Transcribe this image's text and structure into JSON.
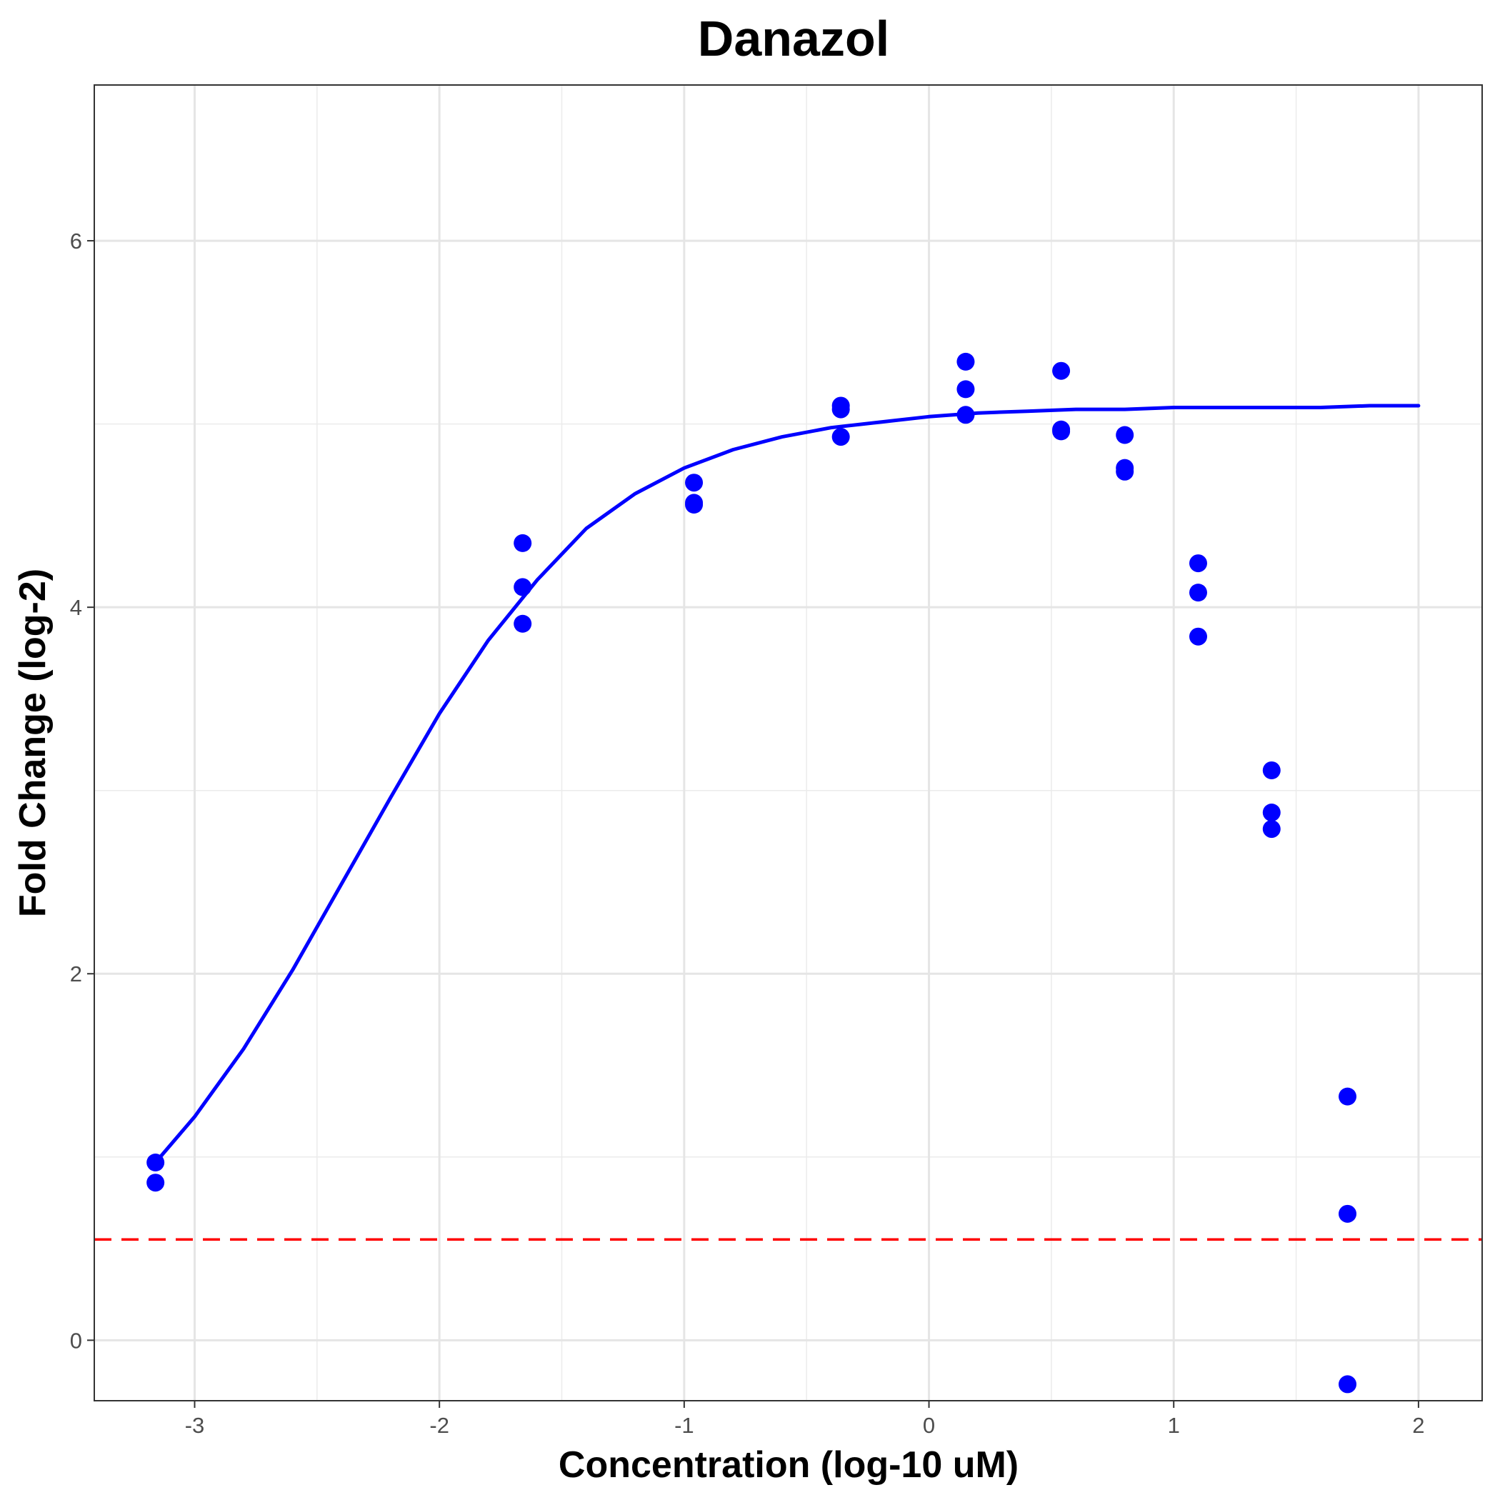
{
  "chart_data": {
    "type": "scatter",
    "title": "Danazol",
    "xlabel": "Concentration (log-10 uM)",
    "ylabel": "Fold Change (log-2)",
    "xlim": [
      -3.41,
      2.26
    ],
    "ylim": [
      -0.33,
      6.85
    ],
    "x_ticks": [
      -3,
      -2,
      -1,
      0,
      1,
      2
    ],
    "x_tick_labels": [
      "-3",
      "-2",
      "-1",
      "0",
      "1",
      "2"
    ],
    "y_ticks": [
      0,
      2,
      4,
      6
    ],
    "y_tick_labels": [
      "0",
      "2",
      "4",
      "6"
    ],
    "grid": true,
    "series": [
      {
        "kind": "points",
        "color": "#0000ff",
        "x": [
          -3.16,
          -3.16,
          -1.66,
          -1.66,
          -1.66,
          -0.96,
          -0.96,
          -0.96,
          -0.36,
          -0.36,
          -0.36,
          0.15,
          0.15,
          0.15,
          0.54,
          0.54,
          0.54,
          0.8,
          0.8,
          0.8,
          1.1,
          1.1,
          1.1,
          1.4,
          1.4,
          1.4,
          1.71,
          1.71,
          1.71
        ],
        "y": [
          0.97,
          0.86,
          4.35,
          4.11,
          3.91,
          4.68,
          4.57,
          4.56,
          5.1,
          5.08,
          4.93,
          5.34,
          5.19,
          5.05,
          5.29,
          4.97,
          4.96,
          4.94,
          4.76,
          4.74,
          4.24,
          4.08,
          3.84,
          3.11,
          2.88,
          2.79,
          1.33,
          0.69,
          -0.24
        ]
      },
      {
        "kind": "fit-curve",
        "color": "#0000ff",
        "x": [
          -3.16,
          -3.0,
          -2.8,
          -2.6,
          -2.4,
          -2.2,
          -2.0,
          -1.8,
          -1.6,
          -1.4,
          -1.2,
          -1.0,
          -0.8,
          -0.6,
          -0.4,
          -0.2,
          0.0,
          0.2,
          0.4,
          0.6,
          0.8,
          1.0,
          1.2,
          1.4,
          1.6,
          1.8,
          2.0
        ],
        "y": [
          0.97,
          1.22,
          1.59,
          2.02,
          2.49,
          2.96,
          3.42,
          3.82,
          4.15,
          4.43,
          4.62,
          4.76,
          4.86,
          4.93,
          4.98,
          5.01,
          5.04,
          5.06,
          5.07,
          5.08,
          5.08,
          5.09,
          5.09,
          5.09,
          5.09,
          5.1,
          5.1
        ]
      }
    ],
    "reference_line": {
      "orientation": "horizontal",
      "y": 0.55,
      "style": "dashed",
      "color": "#ff0000"
    }
  }
}
